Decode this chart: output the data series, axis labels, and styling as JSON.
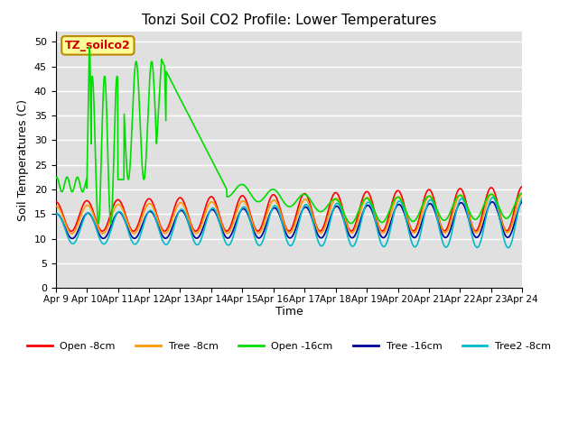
{
  "title": "Tonzi Soil CO2 Profile: Lower Temperatures",
  "xlabel": "Time",
  "ylabel": "Soil Temperatures (C)",
  "ylim": [
    0,
    52
  ],
  "yticks": [
    0,
    5,
    10,
    15,
    20,
    25,
    30,
    35,
    40,
    45,
    50
  ],
  "bg_color": "#e0e0e0",
  "fig_bg": "#ffffff",
  "annotation_text": "TZ_soilco2",
  "annotation_color": "#cc0000",
  "annotation_bg": "#ffff99",
  "annotation_border": "#bb8800",
  "legend_entries": [
    "Open -8cm",
    "Tree -8cm",
    "Open -16cm",
    "Tree -16cm",
    "Tree2 -8cm"
  ],
  "line_colors": [
    "#ff0000",
    "#ff9900",
    "#00dd00",
    "#000099",
    "#00bbcc"
  ],
  "xticklabels": [
    "Apr 9",
    "Apr 10",
    "Apr 11",
    "Apr 12",
    "Apr 13",
    "Apr 14",
    "Apr 15",
    "Apr 16",
    "Apr 17",
    "Apr 18",
    "Apr 19",
    "Apr 20",
    "Apr 21",
    "Apr 22",
    "Apr 23",
    "Apr 24"
  ],
  "n_days": 15
}
